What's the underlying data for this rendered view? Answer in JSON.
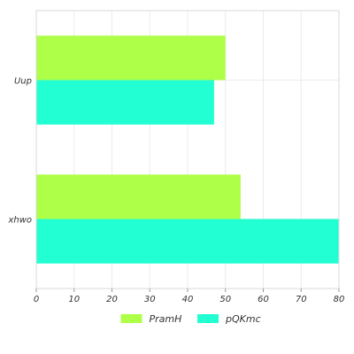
{
  "chart_data": {
    "type": "bar",
    "orientation": "horizontal",
    "categories": [
      "Uup",
      "xhwo"
    ],
    "series": [
      {
        "name": "PramH",
        "values": [
          50,
          54
        ],
        "color": "#aeff47"
      },
      {
        "name": "pQKmc",
        "values": [
          47,
          80
        ],
        "color": "#22ffd2"
      }
    ],
    "xlim": [
      0,
      80
    ],
    "xticks": [
      0,
      10,
      20,
      30,
      40,
      50,
      60,
      70,
      80
    ],
    "title": "",
    "xlabel": "",
    "ylabel": "",
    "grid": true,
    "legend_position": "bottom"
  }
}
